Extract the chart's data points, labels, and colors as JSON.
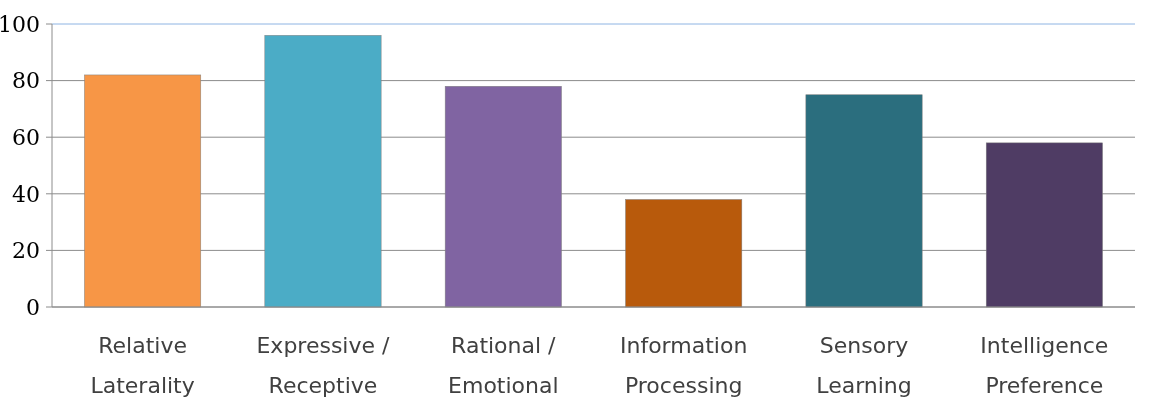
{
  "chart_data": {
    "type": "bar",
    "categories": [
      "Relative Laterality",
      "Expressive / Receptive",
      "Rational / Emotional",
      "Information Processing",
      "Sensory Learning",
      "Intelligence Preference"
    ],
    "values": [
      82,
      96,
      78,
      38,
      75,
      58
    ],
    "colors": [
      "#f79646",
      "#4bacc6",
      "#8064a2",
      "#b85a0c",
      "#2b6e7e",
      "#4f3c64"
    ],
    "ylim": [
      0,
      100
    ],
    "yticks": [
      0,
      20,
      40,
      60,
      80,
      100
    ],
    "grid": "y"
  }
}
